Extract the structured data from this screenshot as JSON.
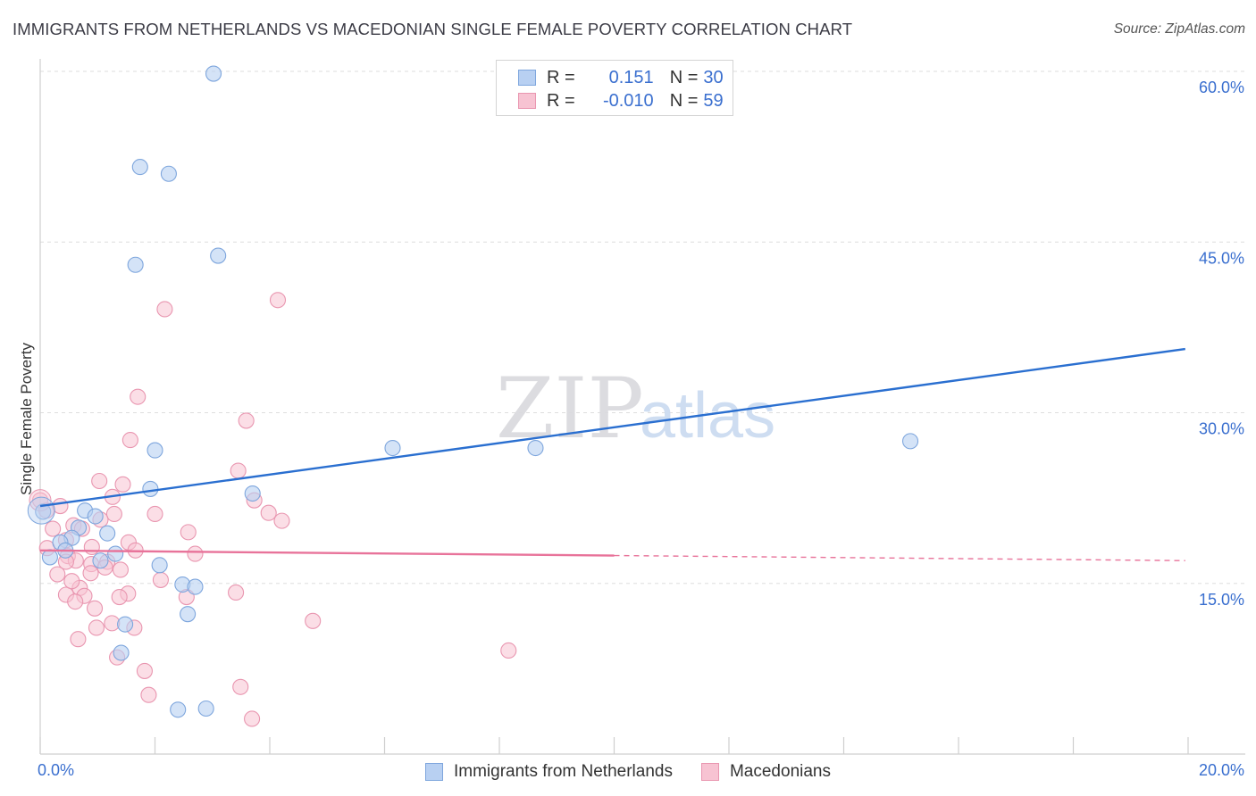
{
  "title": "IMMIGRANTS FROM NETHERLANDS VS MACEDONIAN SINGLE FEMALE POVERTY CORRELATION CHART",
  "source": "Source: ZipAtlas.com",
  "watermark": {
    "zip": "ZIP",
    "atlas": "atlas"
  },
  "legend_top": {
    "rows": [
      {
        "r_label": "R =",
        "r_value": "0.151",
        "n_label": "N =",
        "n_value": "30"
      },
      {
        "r_label": "R =",
        "r_value": "-0.010",
        "n_label": "N =",
        "n_value": "59"
      }
    ]
  },
  "legend_bottom": [
    {
      "label": "Immigrants from Netherlands"
    },
    {
      "label": "Macedonians"
    }
  ],
  "colors": {
    "blue_fill": "#b8d0f2",
    "blue_stroke": "#7ea6dd",
    "blue_line": "#2a6fd0",
    "pink_fill": "#f7c3d2",
    "pink_stroke": "#e996b0",
    "pink_line": "#e8739a",
    "axis_text": "#3a6fcf",
    "grid": "#dedede"
  },
  "chart_data": {
    "type": "scatter",
    "title": "IMMIGRANTS FROM NETHERLANDS VS MACEDONIAN SINGLE FEMALE POVERTY CORRELATION CHART",
    "xlabel": "",
    "ylabel": "Single Female Poverty",
    "xlim": [
      0,
      20
    ],
    "ylim": [
      0,
      60
    ],
    "x_tick_labels": [
      "0.0%",
      "20.0%"
    ],
    "y_ticks": [
      15,
      30,
      45,
      60
    ],
    "y_tick_labels": [
      "15.0%",
      "30.0%",
      "45.0%",
      "60.0%"
    ],
    "series": [
      {
        "name": "Immigrants from Netherlands",
        "r": 0.151,
        "n": 30,
        "trend": {
          "x0": 0,
          "y0": 21.8,
          "x1": 19.95,
          "y1": 35.6,
          "solid_until": 19.95
        },
        "points": [
          [
            3.02,
            59.8
          ],
          [
            1.74,
            51.6
          ],
          [
            2.24,
            51.0
          ],
          [
            3.1,
            43.8
          ],
          [
            1.66,
            43.0
          ],
          [
            2.0,
            26.7
          ],
          [
            6.14,
            26.9
          ],
          [
            8.63,
            26.9
          ],
          [
            15.16,
            27.5
          ],
          [
            1.92,
            23.3
          ],
          [
            3.7,
            22.9
          ],
          [
            0.05,
            21.3
          ],
          [
            0.78,
            21.4
          ],
          [
            0.96,
            20.9
          ],
          [
            0.67,
            19.9
          ],
          [
            1.17,
            19.4
          ],
          [
            0.55,
            19.0
          ],
          [
            0.35,
            18.6
          ],
          [
            0.44,
            17.9
          ],
          [
            1.31,
            17.6
          ],
          [
            0.17,
            17.3
          ],
          [
            1.05,
            17.0
          ],
          [
            2.08,
            16.6
          ],
          [
            2.48,
            14.9
          ],
          [
            2.7,
            14.7
          ],
          [
            2.57,
            12.3
          ],
          [
            1.48,
            11.4
          ],
          [
            1.41,
            8.9
          ],
          [
            2.4,
            3.9
          ],
          [
            2.89,
            4.0
          ]
        ]
      },
      {
        "name": "Macedonians",
        "r": -0.01,
        "n": 59,
        "trend": {
          "x0": 0,
          "y0": 17.9,
          "x1": 19.95,
          "y1": 17.0,
          "solid_until": 10.0
        },
        "points": [
          [
            4.14,
            39.9
          ],
          [
            2.17,
            39.1
          ],
          [
            1.7,
            31.4
          ],
          [
            1.57,
            27.6
          ],
          [
            3.59,
            29.3
          ],
          [
            3.45,
            24.9
          ],
          [
            1.03,
            24.0
          ],
          [
            1.44,
            23.7
          ],
          [
            1.26,
            22.6
          ],
          [
            3.73,
            22.3
          ],
          [
            0.0,
            22.3
          ],
          [
            0.11,
            21.4
          ],
          [
            2.0,
            21.1
          ],
          [
            1.29,
            21.1
          ],
          [
            3.98,
            21.2
          ],
          [
            4.21,
            20.5
          ],
          [
            1.05,
            20.6
          ],
          [
            0.58,
            20.1
          ],
          [
            0.73,
            19.8
          ],
          [
            2.58,
            19.5
          ],
          [
            0.22,
            19.8
          ],
          [
            0.45,
            18.8
          ],
          [
            1.54,
            18.6
          ],
          [
            0.12,
            18.1
          ],
          [
            1.66,
            17.9
          ],
          [
            0.48,
            17.4
          ],
          [
            2.7,
            17.6
          ],
          [
            0.62,
            17.0
          ],
          [
            0.45,
            16.9
          ],
          [
            0.89,
            16.7
          ],
          [
            1.17,
            16.9
          ],
          [
            1.13,
            16.4
          ],
          [
            0.88,
            15.9
          ],
          [
            0.3,
            15.8
          ],
          [
            0.69,
            14.6
          ],
          [
            1.53,
            14.1
          ],
          [
            0.45,
            14.0
          ],
          [
            0.77,
            13.9
          ],
          [
            1.38,
            13.8
          ],
          [
            2.55,
            13.8
          ],
          [
            3.41,
            14.2
          ],
          [
            0.61,
            13.4
          ],
          [
            0.95,
            12.8
          ],
          [
            1.25,
            11.5
          ],
          [
            0.98,
            11.1
          ],
          [
            1.64,
            11.1
          ],
          [
            4.75,
            11.7
          ],
          [
            0.66,
            10.1
          ],
          [
            1.34,
            8.5
          ],
          [
            8.16,
            9.1
          ],
          [
            1.82,
            7.3
          ],
          [
            1.89,
            5.2
          ],
          [
            3.49,
            5.9
          ],
          [
            3.69,
            3.1
          ],
          [
            0.35,
            21.8
          ],
          [
            0.9,
            18.2
          ],
          [
            2.1,
            15.3
          ],
          [
            1.4,
            16.2
          ],
          [
            0.55,
            15.2
          ]
        ]
      }
    ]
  }
}
